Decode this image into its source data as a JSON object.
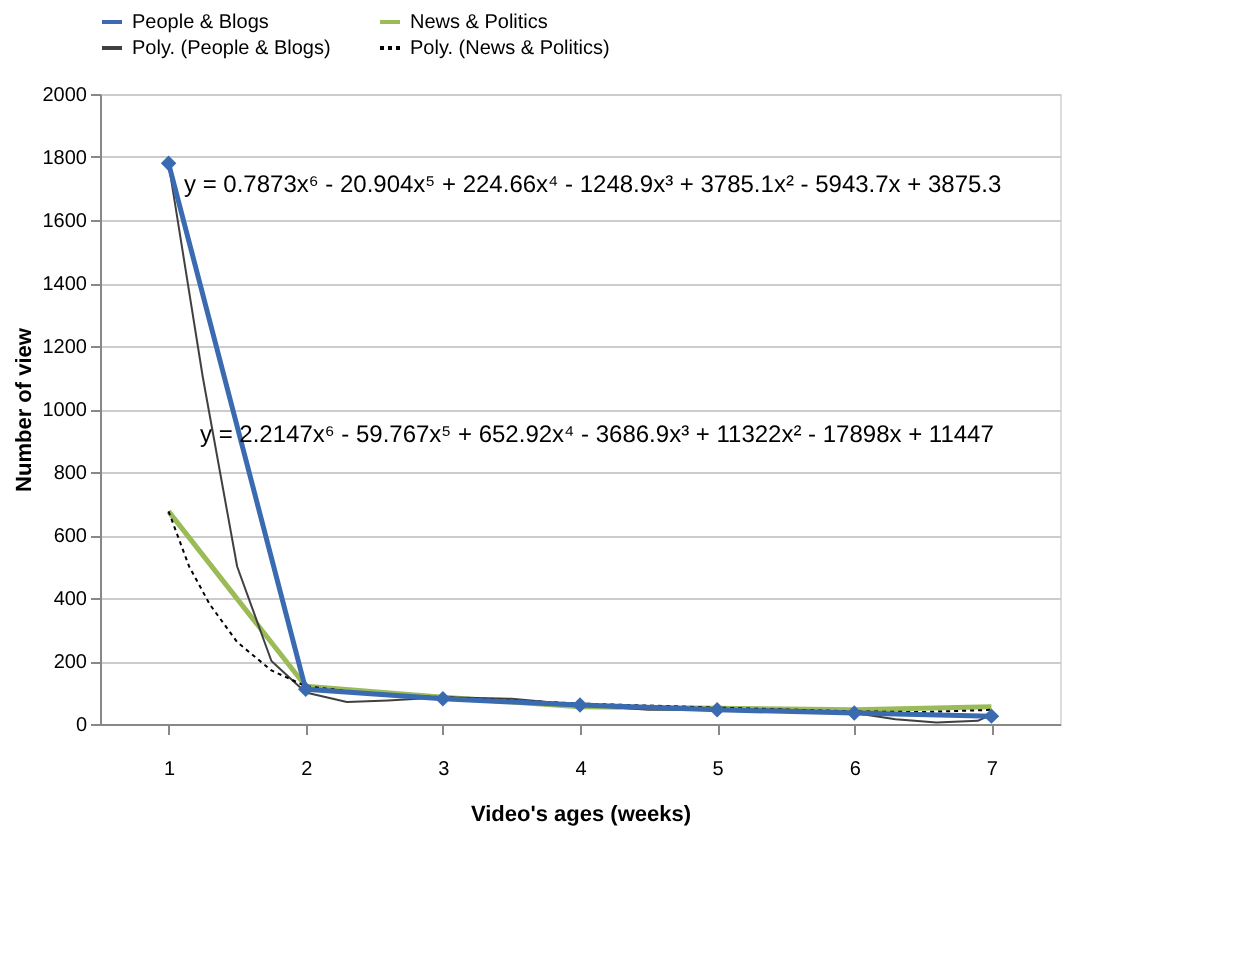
{
  "chart_data": {
    "type": "line",
    "xlabel": "Video's ages (weeks)",
    "ylabel": "Number of view",
    "xlim": [
      0.5,
      7.5
    ],
    "xticks": [
      1,
      2,
      3,
      4,
      5,
      6,
      7
    ],
    "ylim": [
      0,
      2000
    ],
    "yticks": [
      0,
      200,
      400,
      600,
      800,
      1000,
      1200,
      1400,
      1600,
      1800,
      2000
    ],
    "grid": "y",
    "legend": "top",
    "x": [
      1,
      2,
      3,
      4,
      5,
      6,
      7
    ],
    "series": [
      {
        "name": "People & Blogs",
        "color": "#3a6ab0",
        "marker": "diamond",
        "line_style": "solid",
        "values": [
          1780,
          110,
          80,
          60,
          45,
          35,
          25
        ]
      },
      {
        "name": "News & Politics",
        "color": "#9bbb59",
        "marker": "none",
        "line_style": "solid",
        "values": [
          675,
          120,
          85,
          55,
          50,
          45,
          55
        ]
      },
      {
        "name": "Poly. (People & Blogs)",
        "color": "#404040",
        "marker": "none",
        "line_style": "solid",
        "x": [
          1,
          1.25,
          1.5,
          1.75,
          2,
          2.3,
          2.6,
          3,
          3.5,
          4,
          4.5,
          5,
          5.5,
          6,
          6.3,
          6.6,
          6.9,
          7
        ],
        "values": [
          1780,
          1100,
          500,
          200,
          100,
          70,
          75,
          85,
          80,
          60,
          45,
          45,
          45,
          35,
          15,
          5,
          10,
          30
        ]
      },
      {
        "name": "Poly. (News & Politics)",
        "color": "#000000",
        "marker": "none",
        "line_style": "dotted",
        "x": [
          1,
          1.15,
          1.3,
          1.5,
          1.75,
          2,
          2.5,
          3,
          4,
          5,
          6,
          6.5,
          7
        ],
        "values": [
          675,
          500,
          380,
          260,
          170,
          120,
          95,
          85,
          65,
          52,
          40,
          38,
          45
        ]
      }
    ],
    "annotations": [
      "y = 0.7873x⁶ - 20.904x⁵ + 224.66x⁴ - 1248.9x³ + 3785.1x² - 5943.7x + 3875.3",
      "y = 2.2147x⁶ - 59.767x⁵ + 652.92x⁴ - 3686.9x³ + 11322x² - 17898x + 11447"
    ]
  }
}
